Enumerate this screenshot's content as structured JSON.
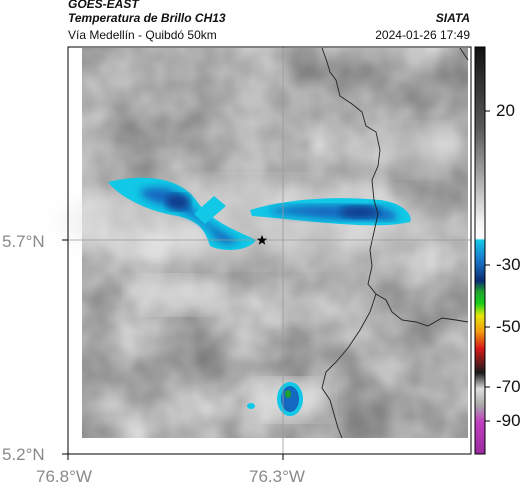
{
  "header": {
    "satellite": "GOES-EAST",
    "product": "Temperatura de Brillo CH13",
    "location": "Vía Medellín - Quibdó 50km",
    "agency": "SIATA",
    "datetime": "2024-01-26 17:49"
  },
  "map": {
    "lat_labels": [
      "5.7°N",
      "5.2°N"
    ],
    "lon_labels": [
      "76.8°W",
      "76.3°W"
    ],
    "marker_icon": "star-icon"
  },
  "colorbar": {
    "tick_labels": [
      "20",
      "-30",
      "-50",
      "-70",
      "-90"
    ]
  },
  "colors": {
    "frame": "#000000",
    "cloud_cyan": "#11c8e6",
    "cloud_blue": "#1468c0",
    "cloud_dark": "#0c3c8c",
    "border_line": "#222222",
    "grid_line": "#999999"
  }
}
